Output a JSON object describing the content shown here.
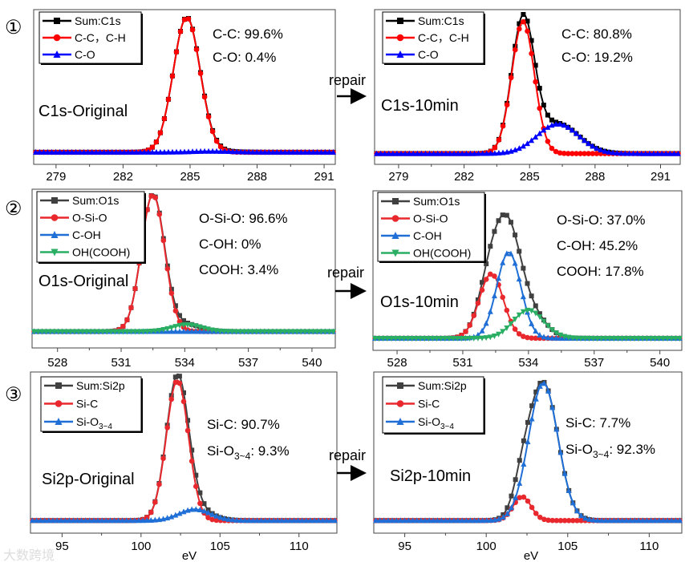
{
  "chart_data": [
    {
      "type": "line",
      "panel_number": "①",
      "title": "C1s-Original",
      "xlim": [
        278.0,
        291.5
      ],
      "ylim": [
        -9,
        106
      ],
      "xticks": [
        "279",
        "282",
        "285",
        "288",
        "291"
      ],
      "xtick_values": [
        279,
        282,
        285,
        288,
        291
      ],
      "series": [
        {
          "name": "Sum:C1s",
          "color": "#000000",
          "marker": "square",
          "sum": true
        },
        {
          "name": "C-C，C-H",
          "color": "#ff0000",
          "marker": "circle",
          "center": 284.85,
          "amplitude": 100,
          "sigma": 0.6
        },
        {
          "name": "C-O",
          "color": "#0000ff",
          "marker": "triangle-up",
          "center": 286.0,
          "amplitude": 0.7,
          "sigma": 0.9
        }
      ],
      "annotations": [
        {
          "text": "C-C: 99.6%"
        },
        {
          "text": "C-O: 0.4%"
        }
      ]
    },
    {
      "type": "line",
      "title": "C1s-10min",
      "xlim": [
        277.9,
        291.9
      ],
      "ylim": [
        -8,
        107
      ],
      "xticks": [
        "279",
        "282",
        "285",
        "288",
        "291"
      ],
      "xtick_values": [
        279,
        282,
        285,
        288,
        291
      ],
      "series": [
        {
          "name": "Sum:C1s",
          "color": "#000000",
          "marker": "square",
          "sum": true
        },
        {
          "name": "C-C，C-H",
          "color": "#ff0000",
          "marker": "circle",
          "center": 284.7,
          "amplitude": 98,
          "sigma": 0.52
        },
        {
          "name": "C-O",
          "color": "#0000ff",
          "marker": "triangle-up",
          "center": 286.3,
          "amplitude": 22,
          "sigma": 0.95
        }
      ],
      "annotations": [
        {
          "text": "C-C: 80.8%"
        },
        {
          "text": "C-O: 19.2%"
        }
      ]
    },
    {
      "type": "line",
      "panel_number": "②",
      "title": "O1s-Original",
      "xlim": [
        526.8,
        541.1
      ],
      "ylim": [
        -12,
        104
      ],
      "xticks": [
        "528",
        "531",
        "534",
        "537",
        "540"
      ],
      "xtick_values": [
        528,
        531,
        534,
        537,
        540
      ],
      "series": [
        {
          "name": "Sum:O1s",
          "color": "#404040",
          "marker": "square",
          "sum": true
        },
        {
          "name": "O-Si-O",
          "color": "#e8282d",
          "marker": "circle",
          "center": 532.5,
          "amplitude": 100,
          "sigma": 0.55
        },
        {
          "name": "C-OH",
          "color": "#1f6fd6",
          "marker": "triangle-up",
          "center": 533.0,
          "amplitude": 0,
          "sigma": 0.6
        },
        {
          "name": "OH(COOH)",
          "color": "#2aae63",
          "marker": "triangle-down",
          "center": 534.1,
          "amplitude": 5,
          "sigma": 0.7
        }
      ],
      "annotations": [
        {
          "text": "O-Si-O: 96.6%"
        },
        {
          "text": "C-OH:   0%"
        },
        {
          "text": "COOH:  3.4%"
        }
      ]
    },
    {
      "type": "line",
      "title": "O1s-10min",
      "xlim": [
        526.9,
        541.0
      ],
      "ylim": [
        -9,
        110
      ],
      "xticks": [
        "528",
        "531",
        "534",
        "537",
        "540"
      ],
      "xtick_values": [
        528,
        531,
        534,
        537,
        540
      ],
      "series": [
        {
          "name": "Sum:O1s",
          "color": "#404040",
          "marker": "square",
          "sum": true
        },
        {
          "name": "O-Si-O",
          "color": "#e8282d",
          "marker": "circle",
          "center": 532.3,
          "amplitude": 48,
          "sigma": 0.55
        },
        {
          "name": "C-OH",
          "color": "#1f6fd6",
          "marker": "triangle-up",
          "center": 533.1,
          "amplitude": 64,
          "sigma": 0.55
        },
        {
          "name": "OH(COOH)",
          "color": "#2aae63",
          "marker": "triangle-down",
          "center": 534.0,
          "amplitude": 21,
          "sigma": 0.7
        }
      ],
      "annotations": [
        {
          "text": "O-Si-O: 37.0%"
        },
        {
          "text": "C-OH:   45.2%"
        },
        {
          "text": "COOH:  17.8%"
        }
      ]
    },
    {
      "type": "line",
      "panel_number": "③",
      "title": "Si2p-Original",
      "xlabel": "eV",
      "xlim": [
        93.0,
        112.4
      ],
      "ylim": [
        -9,
        106
      ],
      "xticks": [
        "95",
        "100",
        "105",
        "110"
      ],
      "xtick_values": [
        95,
        100,
        105,
        110
      ],
      "series": [
        {
          "name": "Sum:Si2p",
          "color": "#404040",
          "marker": "square",
          "sum": true
        },
        {
          "name": "Si-C",
          "color": "#e8282d",
          "marker": "circle",
          "center": 102.3,
          "amplitude": 100,
          "sigma": 0.7
        },
        {
          "name": "Si-O",
          "name_sub": "3~4",
          "color": "#1f6fd6",
          "marker": "triangle-up",
          "center": 103.4,
          "amplitude": 8,
          "sigma": 1.0
        }
      ],
      "annotations": [
        {
          "text": "Si-C:  90.7%"
        },
        {
          "text": "Si-O",
          "sub": "3~4",
          "rest": ": 9.3%"
        }
      ]
    },
    {
      "type": "line",
      "title": "Si2p-10min",
      "xlabel": "eV",
      "xlim": [
        93.1,
        112.0
      ],
      "ylim": [
        -9,
        106
      ],
      "xticks": [
        "95",
        "100",
        "105",
        "110"
      ],
      "xtick_values": [
        95,
        100,
        105,
        110
      ],
      "series": [
        {
          "name": "Sum:Si2p",
          "color": "#404040",
          "marker": "square",
          "sum": true
        },
        {
          "name": "Si-C",
          "color": "#e8282d",
          "marker": "circle",
          "center": 102.2,
          "amplitude": 17,
          "sigma": 0.55
        },
        {
          "name": "Si-O",
          "name_sub": "3~4",
          "color": "#1f6fd6",
          "marker": "triangle-up",
          "center": 103.5,
          "amplitude": 98,
          "sigma": 0.9
        }
      ],
      "annotations": [
        {
          "text": "Si-C:  7.7%"
        },
        {
          "text": "Si-O",
          "sub": "3~4",
          "rest": ": 92.3%"
        }
      ]
    }
  ],
  "labels": {
    "repair": "repair",
    "panel_numbers": [
      "①",
      "②",
      "③"
    ],
    "xlabel": "eV"
  },
  "watermark": "大数跨境"
}
